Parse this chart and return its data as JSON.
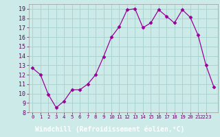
{
  "x": [
    0,
    1,
    2,
    3,
    4,
    5,
    6,
    7,
    8,
    9,
    10,
    11,
    12,
    13,
    14,
    15,
    16,
    17,
    18,
    19,
    20,
    21,
    22,
    23
  ],
  "y": [
    12.7,
    12.0,
    9.9,
    8.5,
    9.2,
    10.4,
    10.4,
    11.0,
    12.0,
    13.9,
    16.0,
    17.1,
    18.9,
    19.0,
    17.0,
    17.5,
    18.9,
    18.2,
    17.5,
    18.9,
    18.1,
    16.2,
    13.0,
    10.7
  ],
  "line_color": "#990099",
  "marker": "D",
  "marker_size": 2.5,
  "bg_color": "#cceae7",
  "grid_color": "#aad4d0",
  "xlabel": "Windchill (Refroidissement éolien,°C)",
  "xlabel_bg": "#7b3f8c",
  "xlabel_color": "#ffffff",
  "ylim": [
    8,
    19.5
  ],
  "yticks": [
    8,
    9,
    10,
    11,
    12,
    13,
    14,
    15,
    16,
    17,
    18,
    19
  ],
  "spine_color": "#999999",
  "tick_color": "#660066"
}
